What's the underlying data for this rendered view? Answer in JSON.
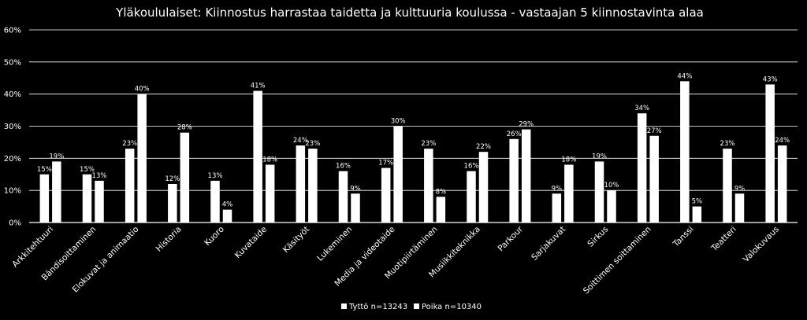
{
  "chart_data": {
    "type": "bar",
    "title": "Yläkoululaiset: Kiinnostus harrastaa taidetta ja kulttuuria koulussa - vastaajan 5 kiinnostavinta alaa",
    "xlabel": "",
    "ylabel": "",
    "ylim": [
      0,
      60
    ],
    "yticks": [
      0,
      10,
      20,
      30,
      40,
      50,
      60
    ],
    "y_tick_format": "%",
    "grid": true,
    "legend_position": "bottom",
    "categories": [
      "Arkkitehtuuri",
      "Bändisoittaminen",
      "Elokuvat ja animaatio",
      "Historia",
      "Kuoro",
      "Kuvataide",
      "Käsityöt",
      "Lukeminen",
      "Media ja videotaide",
      "Muotipiirtäminen",
      "Musiikkiteknikka",
      "Parkour",
      "Sarjakuvat",
      "Sirkus",
      "Soittimen soittaminen",
      "Tanssi",
      "Teatteri",
      "Valokuvaus"
    ],
    "series": [
      {
        "name": "Tyttö n=13243",
        "values": [
          15,
          15,
          23,
          12,
          13,
          41,
          24,
          16,
          17,
          23,
          16,
          26,
          9,
          19,
          34,
          44,
          23,
          43
        ],
        "color": "#ffffff"
      },
      {
        "name": "Poika n=10340",
        "values": [
          19,
          13,
          40,
          28,
          4,
          18,
          23,
          9,
          30,
          8,
          22,
          29,
          18,
          10,
          27,
          5,
          9,
          24
        ],
        "color": "#ffffff"
      }
    ]
  },
  "colors": {
    "background": "#000000",
    "bar": "#ffffff",
    "grid": "#ffffff",
    "text": "#ffffff"
  }
}
